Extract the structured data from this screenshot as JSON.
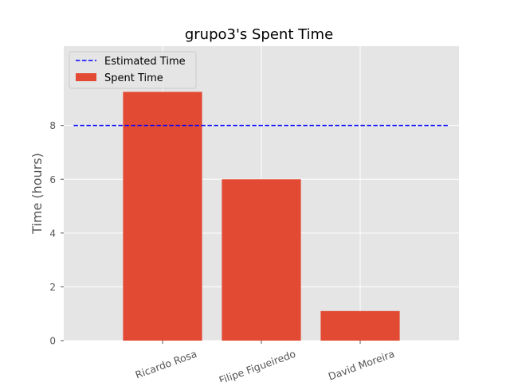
{
  "chart_data": {
    "type": "bar",
    "title": "grupo3's Spent Time",
    "xlabel": "",
    "ylabel": "Time (hours)",
    "categories": [
      "Ricardo Rosa",
      "Filipe Figueiredo",
      "David  Moreira"
    ],
    "series": [
      {
        "name": "Spent Time",
        "values": [
          9.25,
          6.0,
          1.1
        ]
      }
    ],
    "reference_line": {
      "name": "Estimated Time",
      "value": 8
    },
    "ylim": [
      0,
      10.95
    ],
    "yticks": [
      0,
      2,
      4,
      6,
      8
    ],
    "xlim": [
      -1,
      3
    ],
    "grid": true,
    "legend": "top-left",
    "colors": {
      "bar": "#E24A33",
      "line": "#0000FF",
      "plot_bg": "#E5E5E5",
      "grid": "#FFFFFF",
      "tick_text": "#555555"
    }
  }
}
